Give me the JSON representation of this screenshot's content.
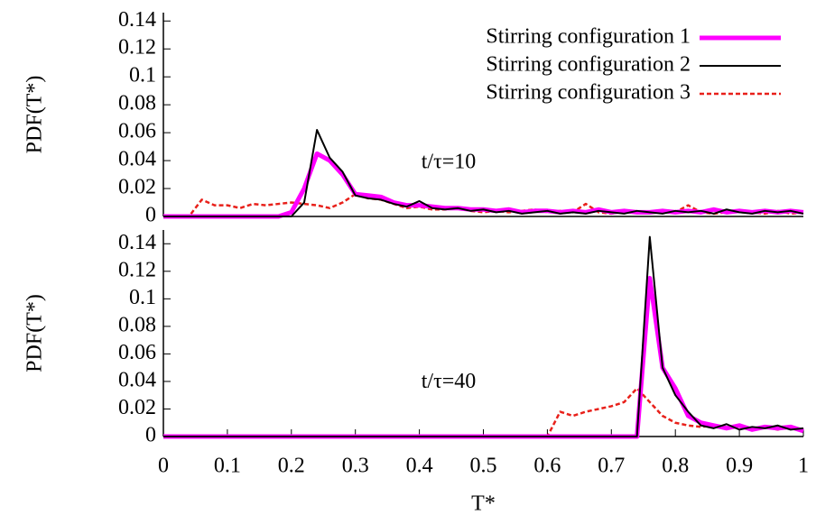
{
  "chart_data": [
    {
      "type": "line",
      "ylabel": "PDF(T*)",
      "annotation": "t/τ=10",
      "legend": "upper right",
      "xlim": [
        0,
        1
      ],
      "ylim": [
        0,
        0.146
      ],
      "yticks": [
        0,
        0.02,
        0.04,
        0.06,
        0.08,
        0.1,
        0.12,
        0.14
      ],
      "x": [
        0,
        0.02,
        0.04,
        0.06,
        0.08,
        0.1,
        0.12,
        0.14,
        0.16,
        0.18,
        0.2,
        0.22,
        0.24,
        0.26,
        0.28,
        0.3,
        0.32,
        0.34,
        0.36,
        0.38,
        0.4,
        0.42,
        0.44,
        0.46,
        0.48,
        0.5,
        0.52,
        0.54,
        0.56,
        0.58,
        0.6,
        0.62,
        0.64,
        0.66,
        0.68,
        0.7,
        0.72,
        0.74,
        0.76,
        0.78,
        0.8,
        0.82,
        0.84,
        0.86,
        0.88,
        0.9,
        0.92,
        0.94,
        0.96,
        0.98,
        1
      ],
      "series": [
        {
          "name": "Stirring configuration 1",
          "color": "#ff00ff",
          "style": "solid",
          "values": [
            0,
            0,
            0,
            0,
            0,
            0,
            0,
            0,
            0,
            0,
            0.003,
            0.02,
            0.045,
            0.04,
            0.03,
            0.016,
            0.015,
            0.014,
            0.01,
            0.008,
            0.008,
            0.007,
            0.006,
            0.006,
            0.005,
            0.005,
            0.004,
            0.005,
            0.003,
            0.004,
            0.004,
            0.003,
            0.004,
            0.003,
            0.005,
            0.003,
            0.004,
            0.003,
            0.003,
            0.004,
            0.003,
            0.004,
            0.003,
            0.005,
            0.003,
            0.004,
            0.003,
            0.004,
            0.003,
            0.004,
            0.003
          ]
        },
        {
          "name": "Stirring configuration 2",
          "color": "#000000",
          "style": "solid",
          "values": [
            0,
            0,
            0,
            0,
            0,
            0,
            0,
            0,
            0,
            0,
            0,
            0.01,
            0.062,
            0.042,
            0.032,
            0.015,
            0.013,
            0.012,
            0.009,
            0.007,
            0.011,
            0.006,
            0.005,
            0.006,
            0.004,
            0.005,
            0.003,
            0.004,
            0.002,
            0.003,
            0.004,
            0.002,
            0.003,
            0.002,
            0.004,
            0.003,
            0.002,
            0.004,
            0.003,
            0.002,
            0.004,
            0.003,
            0.004,
            0.002,
            0.005,
            0.003,
            0.002,
            0.004,
            0.003,
            0.004,
            0.002
          ]
        },
        {
          "name": "Stirring configuration 3",
          "color": "#e8201a",
          "style": "dashed",
          "values": [
            0,
            0,
            0,
            0.012,
            0.008,
            0.008,
            0.006,
            0.009,
            0.008,
            0.009,
            0.01,
            0.009,
            0.008,
            0.006,
            0.01,
            0.016,
            0.013,
            0.012,
            0.009,
            0.006,
            0.007,
            0.005,
            0.005,
            0.006,
            0.004,
            0.003,
            0.004,
            0.003,
            0.004,
            0.005,
            0.003,
            0.004,
            0.003,
            0.009,
            0.003,
            0.002,
            0.004,
            0.003,
            0.003,
            0.004,
            0.003,
            0.008,
            0.003,
            0.002,
            0.003,
            0.004,
            0.003,
            0.002,
            0.004,
            0.002,
            0.003
          ]
        }
      ]
    },
    {
      "type": "line",
      "ylabel": "PDF(T*)",
      "xlabel": "T*",
      "annotation": "t/τ=40",
      "xlim": [
        0,
        1
      ],
      "xticks": [
        0,
        0.1,
        0.2,
        0.3,
        0.4,
        0.5,
        0.6,
        0.7,
        0.8,
        0.9,
        1
      ],
      "ylim": [
        0,
        0.15
      ],
      "yticks": [
        0,
        0.02,
        0.04,
        0.06,
        0.08,
        0.1,
        0.12,
        0.14
      ],
      "x": [
        0,
        0.02,
        0.04,
        0.06,
        0.08,
        0.1,
        0.12,
        0.14,
        0.16,
        0.18,
        0.2,
        0.22,
        0.24,
        0.26,
        0.28,
        0.3,
        0.32,
        0.34,
        0.36,
        0.38,
        0.4,
        0.42,
        0.44,
        0.46,
        0.48,
        0.5,
        0.52,
        0.54,
        0.56,
        0.58,
        0.6,
        0.62,
        0.64,
        0.66,
        0.68,
        0.7,
        0.72,
        0.74,
        0.76,
        0.78,
        0.8,
        0.82,
        0.84,
        0.86,
        0.88,
        0.9,
        0.92,
        0.94,
        0.96,
        0.98,
        1
      ],
      "series": [
        {
          "color": "#ff00ff",
          "style": "solid",
          "values": [
            0,
            0,
            0,
            0,
            0,
            0,
            0,
            0,
            0,
            0,
            0,
            0,
            0,
            0,
            0,
            0,
            0,
            0,
            0,
            0,
            0,
            0,
            0,
            0,
            0,
            0,
            0,
            0,
            0,
            0,
            0,
            0,
            0,
            0,
            0,
            0,
            0,
            0,
            0.115,
            0.05,
            0.035,
            0.015,
            0.01,
            0.008,
            0.006,
            0.008,
            0.005,
            0.007,
            0.006,
            0.007,
            0.004
          ]
        },
        {
          "color": "#000000",
          "style": "solid",
          "values": [
            0,
            0,
            0,
            0,
            0,
            0,
            0,
            0,
            0,
            0,
            0,
            0,
            0,
            0,
            0,
            0,
            0,
            0,
            0,
            0,
            0,
            0,
            0,
            0,
            0,
            0,
            0,
            0,
            0,
            0,
            0,
            0,
            0,
            0,
            0,
            0,
            0,
            0,
            0.145,
            0.05,
            0.03,
            0.018,
            0.008,
            0.006,
            0.009,
            0.005,
            0.007,
            0.006,
            0.008,
            0.005,
            0.006
          ]
        },
        {
          "color": "#e8201a",
          "style": "dashed",
          "values": [
            0,
            0,
            0,
            0,
            0,
            0,
            0,
            0,
            0,
            0,
            0,
            0,
            0,
            0,
            0,
            0,
            0,
            0,
            0,
            0,
            0,
            0,
            0,
            0,
            0,
            0,
            0,
            0,
            0,
            0,
            0,
            0.018,
            0.015,
            0.018,
            0.02,
            0.022,
            0.025,
            0.035,
            0.025,
            0.015,
            0.01,
            0.008,
            0.007,
            0.008,
            0.006,
            0.007,
            0.006,
            0.007,
            0.005,
            0.007,
            0.005
          ]
        }
      ]
    }
  ]
}
